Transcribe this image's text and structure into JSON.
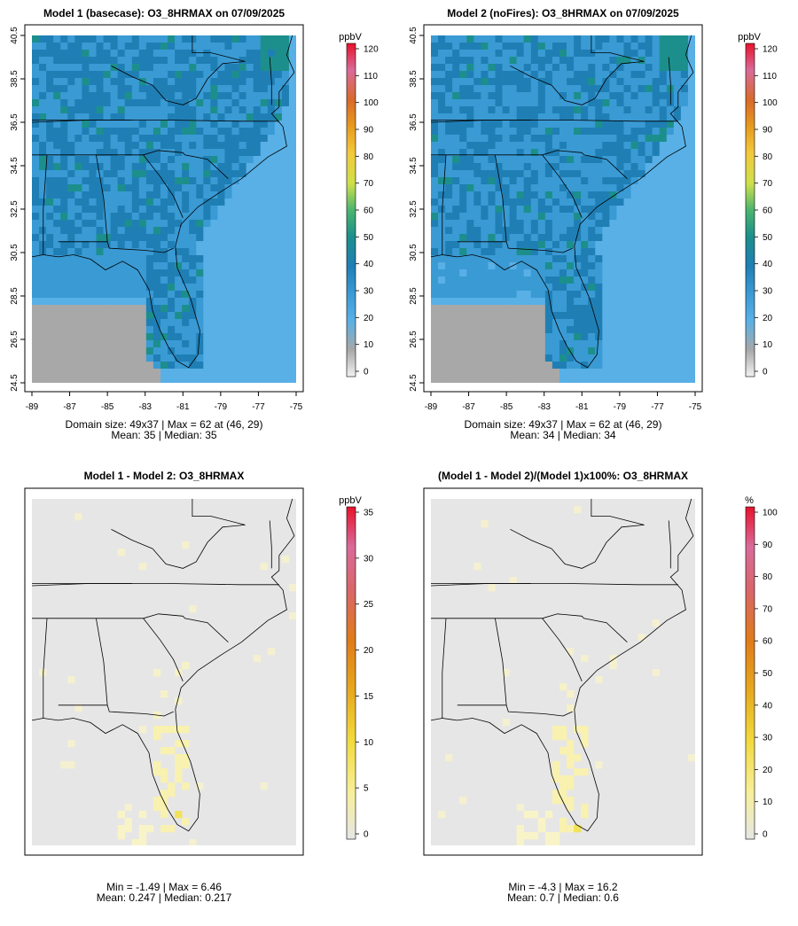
{
  "unit_colors": {
    "gray": "#d9d9d9",
    "blue_light": "#58b0e6",
    "blue": "#2f8fc6",
    "teal": "#1c8f8c",
    "green": "#4bb56f",
    "yellow": "#f2d93c",
    "orange": "#e07b1a",
    "pink": "#d96b9a",
    "red": "#e8122b"
  },
  "chart_data": [
    {
      "type": "heatmap",
      "title": "Model 1 (basecase): O3_8HRMAX on 07/09/2025",
      "x_ticks": [
        "-89",
        "-87",
        "-85",
        "-83",
        "-81",
        "-79",
        "-77",
        "-75"
      ],
      "y_ticks": [
        "24.5",
        "26.5",
        "28.5",
        "30.5",
        "32.5",
        "34.5",
        "36.5",
        "38.5",
        "40.5"
      ],
      "xlim": [
        -89,
        -75
      ],
      "ylim": [
        24.5,
        40.5
      ],
      "colorbar_unit": "ppbV",
      "colorbar_ticks": [
        "0",
        "10",
        "20",
        "30",
        "40",
        "50",
        "60",
        "70",
        "80",
        "90",
        "100",
        "110",
        "120"
      ],
      "colorbar_range": [
        0,
        120
      ],
      "stats_line1": "Domain size: 49x37 | Max = 62 at (46, 29)",
      "stats_line2": "Mean: 35 |  Median: 35",
      "domain_size": [
        49,
        37
      ],
      "max": 62,
      "max_at": [
        46,
        29
      ],
      "mean": 35,
      "median": 35
    },
    {
      "type": "heatmap",
      "title": "Model 2 (noFires): O3_8HRMAX on 07/09/2025",
      "x_ticks": [
        "-89",
        "-87",
        "-85",
        "-83",
        "-81",
        "-79",
        "-77",
        "-75"
      ],
      "y_ticks": [
        "24.5",
        "26.5",
        "28.5",
        "30.5",
        "32.5",
        "34.5",
        "36.5",
        "38.5",
        "40.5"
      ],
      "xlim": [
        -89,
        -75
      ],
      "ylim": [
        24.5,
        40.5
      ],
      "colorbar_unit": "ppbV",
      "colorbar_ticks": [
        "0",
        "10",
        "20",
        "30",
        "40",
        "50",
        "60",
        "70",
        "80",
        "90",
        "100",
        "110",
        "120"
      ],
      "colorbar_range": [
        0,
        120
      ],
      "stats_line1": "Domain size: 49x37 | Max = 62 at (46, 29)",
      "stats_line2": "Mean: 34 |  Median: 34",
      "domain_size": [
        49,
        37
      ],
      "max": 62,
      "max_at": [
        46,
        29
      ],
      "mean": 34,
      "median": 34
    },
    {
      "type": "heatmap",
      "title": "Model 1 - Model 2: O3_8HRMAX",
      "colorbar_unit": "ppbV",
      "colorbar_ticks": [
        "0",
        "5",
        "10",
        "15",
        "20",
        "25",
        "30",
        "35"
      ],
      "colorbar_range": [
        0,
        35
      ],
      "stats_line1": "Min = -1.49 | Max = 6.46",
      "stats_line2": "Mean: 0.247 |  Median: 0.217",
      "min": -1.49,
      "max": 6.46,
      "mean": 0.247,
      "median": 0.217
    },
    {
      "type": "heatmap",
      "title": "(Model 1 - Model 2)/(Model 1)x100%: O3_8HRMAX",
      "colorbar_unit": "%",
      "colorbar_ticks": [
        "0",
        "10",
        "20",
        "30",
        "40",
        "50",
        "60",
        "70",
        "80",
        "90",
        "100"
      ],
      "colorbar_range": [
        0,
        100
      ],
      "stats_line1": "Min = -4.3 | Max = 16.2",
      "stats_line2": "Mean: 0.7 |  Median: 0.6",
      "min": -4.3,
      "max": 16.2,
      "mean": 0.7,
      "median": 0.6
    }
  ]
}
